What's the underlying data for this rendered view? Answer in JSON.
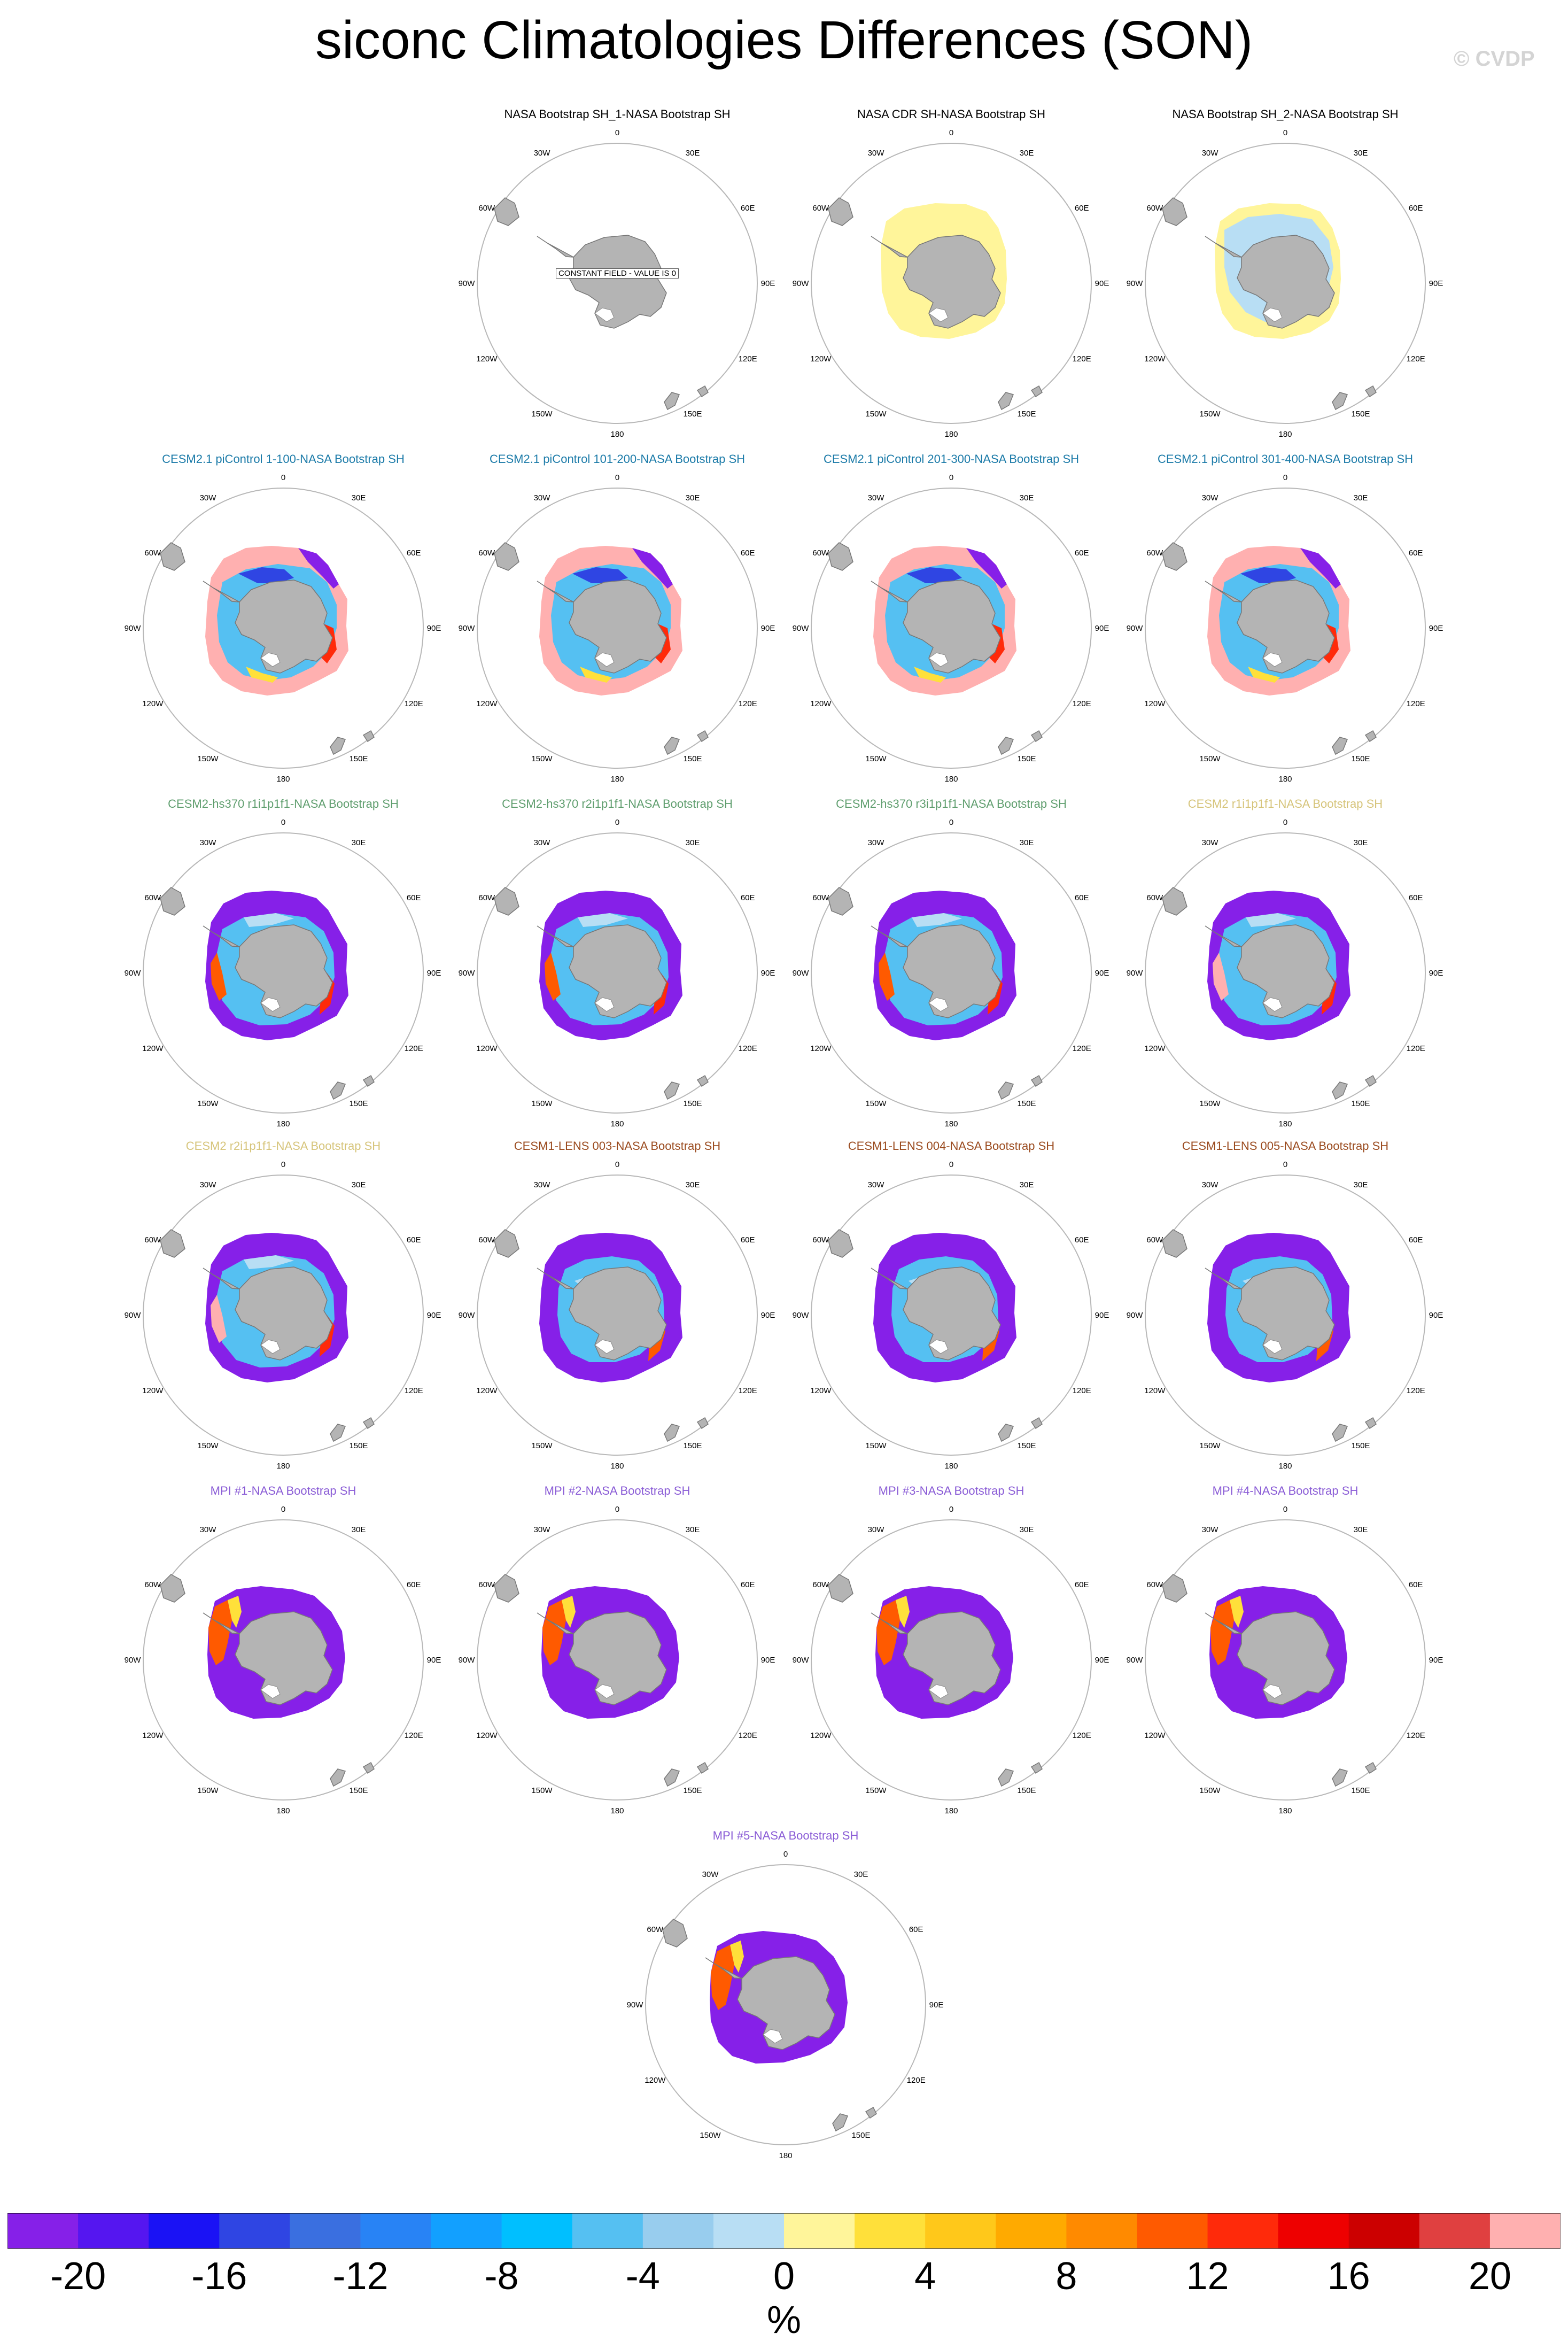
{
  "title": "siconc Climatologies Differences (SON)",
  "watermark": "© CVDP",
  "panel_labels": {
    "lon": [
      "0",
      "30E",
      "60E",
      "90E",
      "120E",
      "150E",
      "180",
      "150W",
      "120W",
      "90W",
      "60W",
      "30W"
    ],
    "constant_field": "CONSTANT FIELD - VALUE IS 0"
  },
  "panels": [
    {
      "title": "NASA Bootstrap SH_1-NASA Bootstrap SH",
      "title_color": "#000000",
      "pattern": "constant"
    },
    {
      "title": "NASA CDR SH-NASA Bootstrap SH",
      "title_color": "#000000",
      "pattern": "cdr"
    },
    {
      "title": "NASA Bootstrap SH_2-NASA Bootstrap SH",
      "title_color": "#000000",
      "pattern": "bootstrap2"
    },
    {
      "title": "CESM2.1 piControl 1-100-NASA Bootstrap SH",
      "title_color": "#1a7aa8",
      "pattern": "picontrol"
    },
    {
      "title": "CESM2.1 piControl 101-200-NASA Bootstrap SH",
      "title_color": "#1a7aa8",
      "pattern": "picontrol"
    },
    {
      "title": "CESM2.1 piControl 201-300-NASA Bootstrap SH",
      "title_color": "#1a7aa8",
      "pattern": "picontrol"
    },
    {
      "title": "CESM2.1 piControl 301-400-NASA Bootstrap SH",
      "title_color": "#1a7aa8",
      "pattern": "picontrol"
    },
    {
      "title": "CESM2-hs370 r1i1p1f1-NASA Bootstrap SH",
      "title_color": "#5f9e6e",
      "pattern": "hs370"
    },
    {
      "title": "CESM2-hs370 r2i1p1f1-NASA Bootstrap SH",
      "title_color": "#5f9e6e",
      "pattern": "hs370"
    },
    {
      "title": "CESM2-hs370 r3i1p1f1-NASA Bootstrap SH",
      "title_color": "#5f9e6e",
      "pattern": "hs370"
    },
    {
      "title": "CESM2 r1i1p1f1-NASA Bootstrap SH",
      "title_color": "#d6c47a",
      "pattern": "cesm2"
    },
    {
      "title": "CESM2 r2i1p1f1-NASA Bootstrap SH",
      "title_color": "#d6c47a",
      "pattern": "cesm2"
    },
    {
      "title": "CESM1-LENS 003-NASA Bootstrap SH",
      "title_color": "#9a4a1e",
      "pattern": "lens"
    },
    {
      "title": "CESM1-LENS 004-NASA Bootstrap SH",
      "title_color": "#9a4a1e",
      "pattern": "lens"
    },
    {
      "title": "CESM1-LENS 005-NASA Bootstrap SH",
      "title_color": "#9a4a1e",
      "pattern": "lens"
    },
    {
      "title": "MPI #1-NASA Bootstrap SH",
      "title_color": "#8a5cd6",
      "pattern": "mpi"
    },
    {
      "title": "MPI #2-NASA Bootstrap SH",
      "title_color": "#8a5cd6",
      "pattern": "mpi"
    },
    {
      "title": "MPI #3-NASA Bootstrap SH",
      "title_color": "#8a5cd6",
      "pattern": "mpi"
    },
    {
      "title": "MPI #4-NASA Bootstrap SH",
      "title_color": "#8a5cd6",
      "pattern": "mpi"
    },
    {
      "title": "MPI #5-NASA Bootstrap SH",
      "title_color": "#8a5cd6",
      "pattern": "mpi"
    }
  ],
  "colorbar": {
    "colors": [
      "#8620e8",
      "#5516f0",
      "#1a12f5",
      "#2f45e3",
      "#3a6fe0",
      "#2883f5",
      "#12a0ff",
      "#00bfff",
      "#55c0f2",
      "#98cdee",
      "#b8def4",
      "#fff59a",
      "#ffe03a",
      "#ffc81a",
      "#ffaa00",
      "#ff8a00",
      "#ff5a00",
      "#ff2a0a",
      "#ee0000",
      "#cc0000",
      "#e04040",
      "#ffb0b0"
    ],
    "tick_labels": [
      "-20",
      "-16",
      "-12",
      "-8",
      "-4",
      "0",
      "4",
      "8",
      "12",
      "16",
      "20"
    ],
    "unit": "%"
  }
}
